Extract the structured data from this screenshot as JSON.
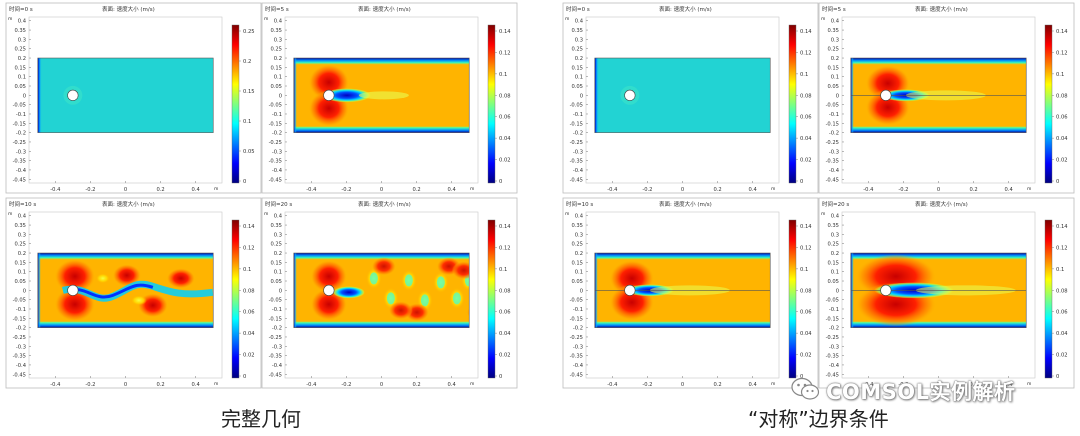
{
  "groups": [
    {
      "caption": "完整几何",
      "plots": [
        {
          "time_label": "时间=0 s",
          "title": "表面: 速度大小 (m/s)",
          "state": "uniform",
          "legend": {
            "ticks": [
              "0.25",
              "0.2",
              "0.15",
              "0.1",
              "0.05",
              "0"
            ]
          }
        },
        {
          "time_label": "时间=5 s",
          "title": "表面: 速度大小 (m/s)",
          "state": "steady",
          "legend": {
            "ticks": [
              "0.14",
              "0.12",
              "0.1",
              "0.08",
              "0.06",
              "0.04",
              "0.02",
              "0"
            ]
          }
        },
        {
          "time_label": "时间=10 s",
          "title": "表面: 速度大小 (m/s)",
          "state": "vortex",
          "legend": {
            "ticks": [
              "0.14",
              "0.12",
              "0.1",
              "0.08",
              "0.06",
              "0.04",
              "0.02",
              "0"
            ]
          }
        },
        {
          "time_label": "时间=20 s",
          "title": "表面: 速度大小 (m/s)",
          "state": "vortex-developed",
          "legend": {
            "ticks": [
              "0.14",
              "0.12",
              "0.1",
              "0.08",
              "0.06",
              "0.04",
              "0.02",
              "0"
            ]
          }
        }
      ]
    },
    {
      "caption": "“对称”边界条件",
      "plots": [
        {
          "time_label": "时间=0 s",
          "title": "表面: 速度大小 (m/s)",
          "state": "uniform",
          "legend": {
            "ticks": [
              "0.14",
              "0.12",
              "0.1",
              "0.08",
              "0.06",
              "0.04",
              "0.02",
              "0"
            ]
          }
        },
        {
          "time_label": "时间=5 s",
          "title": "表面: 速度大小 (m/s)",
          "state": "symmetric-steady",
          "legend": {
            "ticks": [
              "0.14",
              "0.12",
              "0.1",
              "0.08",
              "0.06",
              "0.04",
              "0.02",
              "0"
            ]
          }
        },
        {
          "time_label": "时间=10 s",
          "title": "表面: 速度大小 (m/s)",
          "state": "symmetric-steady",
          "legend": {
            "ticks": [
              "0.14",
              "0.12",
              "0.1",
              "0.08",
              "0.06",
              "0.04",
              "0.02",
              "0"
            ]
          }
        },
        {
          "time_label": "时间=20 s",
          "title": "表面: 速度大小 (m/s)",
          "state": "symmetric-long-wake",
          "legend": {
            "ticks": [
              "0.14",
              "0.12",
              "0.1",
              "0.08",
              "0.06",
              "0.04",
              "0.02",
              "0"
            ]
          }
        }
      ]
    }
  ],
  "axes": {
    "unit": "m",
    "y_ticks": [
      "0.4",
      "0.35",
      "0.3",
      "0.25",
      "0.2",
      "0.15",
      "0.1",
      "0.05",
      "0",
      "-0.05",
      "-0.1",
      "-0.15",
      "-0.2",
      "-0.25",
      "-0.3",
      "-0.35",
      "-0.4",
      "-0.45"
    ],
    "x_ticks": [
      "-0.4",
      "-0.2",
      "0",
      "0.2",
      "0.4"
    ],
    "x_values": [
      -0.4,
      -0.2,
      0,
      0.2,
      0.4
    ],
    "y_values": [
      0.4,
      0.35,
      0.3,
      0.25,
      0.2,
      0.15,
      0.1,
      0.05,
      0,
      -0.05,
      -0.1,
      -0.15,
      -0.2,
      -0.25,
      -0.3,
      -0.35,
      -0.4,
      -0.45
    ],
    "x_range": [
      -0.55,
      0.55
    ],
    "y_range": [
      -0.47,
      0.42
    ],
    "channel_x": [
      -0.5,
      0.5
    ],
    "channel_y": [
      -0.2,
      0.2
    ],
    "cylinder_center": [
      -0.3,
      0
    ],
    "cylinder_radius": 0.03
  },
  "colors": {
    "uniform_field": "#22d3d3",
    "jet": [
      "#00007f",
      "#0000ff",
      "#007fff",
      "#00ffff",
      "#7fff7f",
      "#ffff00",
      "#ff7f00",
      "#ff0000",
      "#7f0000"
    ],
    "wall_dark": "#00008f",
    "cylinder": "#ffffff"
  },
  "watermark": {
    "text": "COMSOL实例解析",
    "icon": "wechat-icon"
  }
}
